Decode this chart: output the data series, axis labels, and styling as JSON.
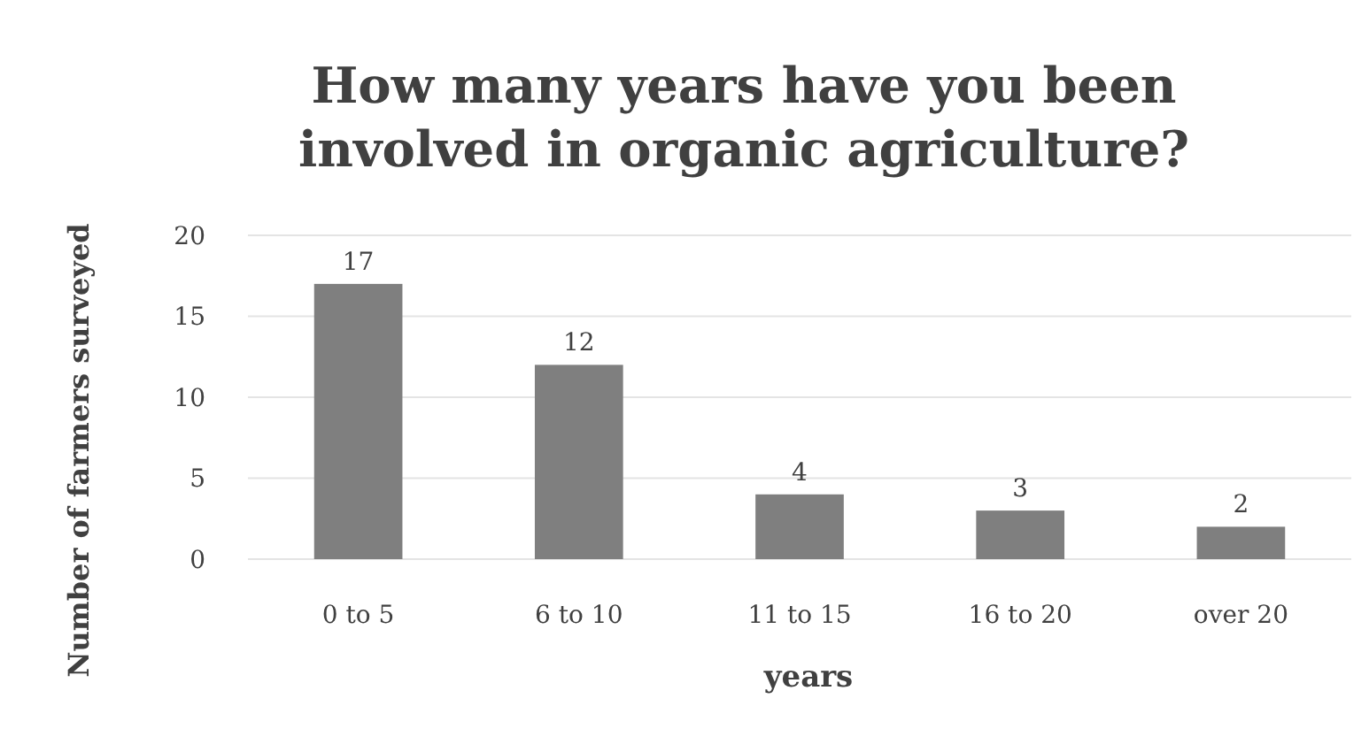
{
  "chart_data": {
    "type": "bar",
    "title": "How many years have you been\ninvolved in organic agriculture?",
    "xlabel": "years",
    "ylabel": "Number of farmers surveyed",
    "categories": [
      "0 to 5",
      "6 to 10",
      "11 to 15",
      "16 to 20",
      "over 20"
    ],
    "values": [
      17,
      12,
      4,
      3,
      2
    ],
    "color": "#7f7f7f",
    "ylim": [
      0,
      20
    ],
    "yticks": [
      0,
      5,
      10,
      15,
      20
    ],
    "grid": "y",
    "data_labels": true
  }
}
